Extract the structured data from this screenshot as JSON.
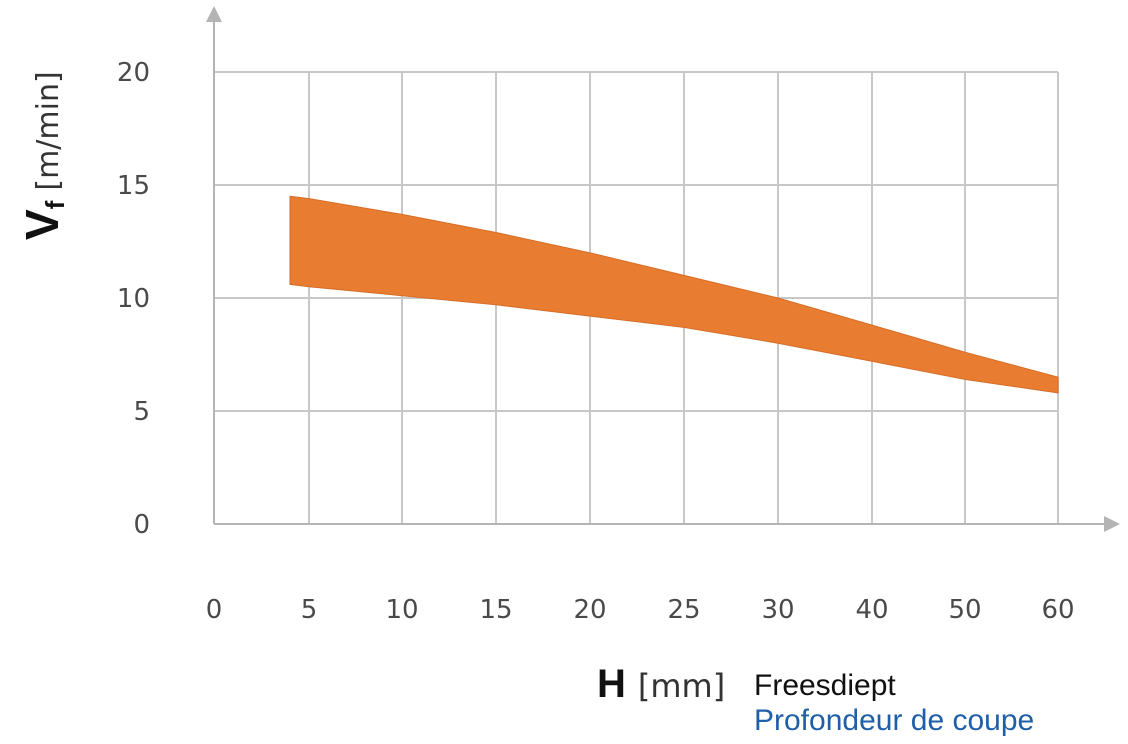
{
  "chart_data": {
    "type": "area",
    "colors": {
      "band": "#e87d32",
      "grid": "#c8c8c8",
      "axis": "#b4b4b4"
    },
    "grid": true,
    "xlabel": {
      "symbol": "H",
      "unit": "[mm]"
    },
    "ylabel": {
      "symbol": "V",
      "subscript": "f",
      "unit": "[m/min]"
    },
    "caption": {
      "dutch": "Freesdiept",
      "french": "Profondeur de coupe"
    },
    "x_ticks": [
      "0",
      "5",
      "10",
      "15",
      "20",
      "25",
      "30",
      "40",
      "50",
      "60"
    ],
    "y_ticks": [
      "0",
      "5",
      "10",
      "15",
      "20"
    ],
    "ylim": [
      0,
      20
    ],
    "band": {
      "x": [
        4,
        5,
        10,
        15,
        20,
        25,
        30,
        40,
        50,
        60
      ],
      "upper": [
        14.5,
        14.4,
        13.7,
        12.9,
        12.0,
        11.0,
        10.0,
        8.8,
        7.6,
        6.5
      ],
      "lower": [
        10.6,
        10.5,
        10.1,
        9.7,
        9.2,
        8.7,
        8.0,
        7.2,
        6.4,
        5.8
      ]
    }
  }
}
